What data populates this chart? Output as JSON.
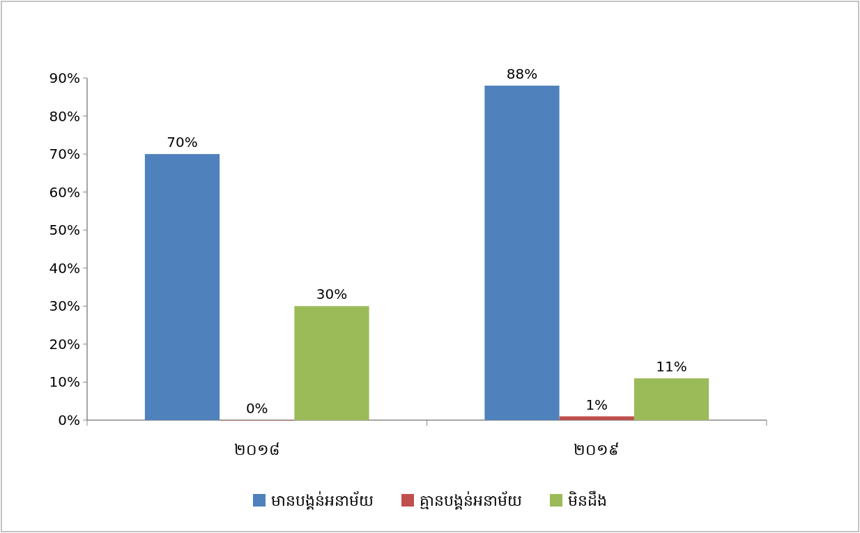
{
  "chart_data": {
    "type": "bar",
    "categories": [
      "២០១៨",
      "២០១៩"
    ],
    "series": [
      {
        "name": "មានបង្គន់អនាម័យ",
        "color": "#4f81bd",
        "values": [
          70,
          88
        ],
        "value_labels": [
          "70%",
          "88%"
        ]
      },
      {
        "name": "គ្មានបង្គន់អនាម័យ",
        "color": "#c0504d",
        "values": [
          0,
          1
        ],
        "value_labels": [
          "0%",
          "1%"
        ]
      },
      {
        "name": "មិនដឹង",
        "color": "#9bbb59",
        "values": [
          30,
          11
        ],
        "value_labels": [
          "30%",
          "11%"
        ]
      }
    ],
    "ylim": [
      0,
      90
    ],
    "yticks": [
      {
        "value": 0,
        "label": "0%"
      },
      {
        "value": 10,
        "label": "10%"
      },
      {
        "value": 20,
        "label": "20%"
      },
      {
        "value": 30,
        "label": "30%"
      },
      {
        "value": 40,
        "label": "40%"
      },
      {
        "value": 50,
        "label": "50%"
      },
      {
        "value": 60,
        "label": "60%"
      },
      {
        "value": 70,
        "label": "70%"
      },
      {
        "value": 80,
        "label": "80%"
      },
      {
        "value": 90,
        "label": "90%"
      }
    ],
    "legend": "bottom"
  }
}
